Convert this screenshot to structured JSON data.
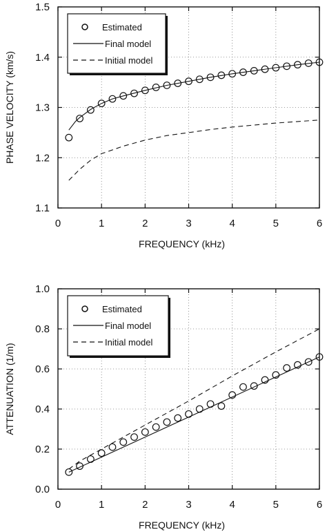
{
  "chart_data": [
    {
      "type": "scatter",
      "xlabel": "FREQUENCY (kHz)",
      "ylabel": "PHASE VELOCITY (km/s)",
      "xlim": [
        0,
        6
      ],
      "ylim": [
        1.1,
        1.5
      ],
      "x_ticks": [
        "0",
        "1",
        "2",
        "3",
        "4",
        "5",
        "6"
      ],
      "y_ticks": [
        "1.1",
        "1.2",
        "1.3",
        "1.4",
        "1.5"
      ],
      "grid": "dotted",
      "legend_position": "top-left",
      "legend": [
        "Estimated",
        "Final model",
        "Initial model"
      ],
      "series": [
        {
          "name": "Estimated",
          "style": "circles",
          "x": [
            0.25,
            0.5,
            0.75,
            1.0,
            1.25,
            1.5,
            1.75,
            2.0,
            2.25,
            2.5,
            2.75,
            3.0,
            3.25,
            3.5,
            3.75,
            4.0,
            4.25,
            4.5,
            4.75,
            5.0,
            5.25,
            5.5,
            5.75,
            6.0
          ],
          "y": [
            1.24,
            1.278,
            1.295,
            1.308,
            1.317,
            1.323,
            1.328,
            1.334,
            1.34,
            1.344,
            1.348,
            1.352,
            1.356,
            1.36,
            1.364,
            1.367,
            1.37,
            1.373,
            1.376,
            1.379,
            1.382,
            1.385,
            1.388,
            1.39
          ]
        },
        {
          "name": "Final model",
          "style": "solid",
          "x": [
            0.25,
            0.4,
            0.5,
            0.75,
            1.0,
            1.25,
            1.5,
            2.0,
            2.5,
            3.0,
            3.5,
            4.0,
            4.5,
            5.0,
            5.5,
            6.0
          ],
          "y": [
            1.255,
            1.272,
            1.28,
            1.296,
            1.308,
            1.317,
            1.323,
            1.334,
            1.344,
            1.352,
            1.36,
            1.367,
            1.373,
            1.379,
            1.385,
            1.39
          ]
        },
        {
          "name": "Initial model",
          "style": "dashed",
          "x": [
            0.25,
            0.5,
            0.75,
            1.0,
            1.5,
            2.0,
            2.5,
            3.0,
            3.5,
            4.0,
            4.5,
            5.0,
            5.5,
            6.0
          ],
          "y": [
            1.155,
            1.177,
            1.195,
            1.208,
            1.223,
            1.235,
            1.244,
            1.25,
            1.256,
            1.261,
            1.265,
            1.269,
            1.272,
            1.275
          ]
        }
      ]
    },
    {
      "type": "scatter",
      "xlabel": "FREQUENCY (kHz)",
      "ylabel": "ATTENUATION (1/m)",
      "xlim": [
        0,
        6
      ],
      "ylim": [
        0.0,
        1.0
      ],
      "x_ticks": [
        "0",
        "1",
        "2",
        "3",
        "4",
        "5",
        "6"
      ],
      "y_ticks": [
        "0.0",
        "0.2",
        "0.4",
        "0.6",
        "0.8",
        "1.0"
      ],
      "grid": "dotted",
      "legend_position": "top-left",
      "legend": [
        "Estimated",
        "Final model",
        "Initial model"
      ],
      "series": [
        {
          "name": "Estimated",
          "style": "circles",
          "x": [
            0.25,
            0.5,
            0.75,
            1.0,
            1.25,
            1.5,
            1.75,
            2.0,
            2.25,
            2.5,
            2.75,
            3.0,
            3.25,
            3.5,
            3.75,
            4.0,
            4.25,
            4.5,
            4.75,
            5.0,
            5.25,
            5.5,
            5.75,
            6.0
          ],
          "y": [
            0.085,
            0.115,
            0.15,
            0.18,
            0.21,
            0.235,
            0.26,
            0.285,
            0.31,
            0.335,
            0.355,
            0.375,
            0.4,
            0.425,
            0.415,
            0.47,
            0.51,
            0.515,
            0.545,
            0.57,
            0.605,
            0.62,
            0.635,
            0.66
          ]
        },
        {
          "name": "Final model",
          "style": "solid",
          "x": [
            0.25,
            6.0
          ],
          "y": [
            0.085,
            0.66
          ]
        },
        {
          "name": "Initial model",
          "style": "dashed",
          "x": [
            0.25,
            0.5,
            1.0,
            2.0,
            3.0,
            4.0,
            5.0,
            6.0
          ],
          "y": [
            0.1,
            0.14,
            0.2,
            0.32,
            0.44,
            0.565,
            0.685,
            0.8
          ]
        }
      ]
    }
  ]
}
